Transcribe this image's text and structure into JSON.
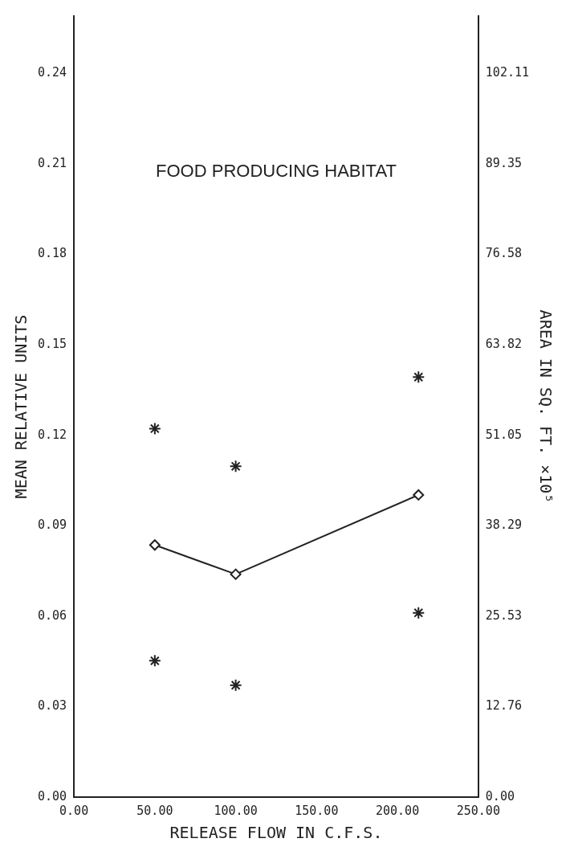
{
  "chart_data": {
    "type": "line",
    "title": "FOOD PRODUCING HABITAT",
    "xlabel": "RELEASE FLOW IN C.F.S.",
    "ylabel": "MEAN RELATIVE UNITS",
    "y2label": "AREA IN SQ. FT. ×10⁵",
    "series": [
      {
        "color": "#222222",
        "marker": "diamond",
        "line_style": "solid",
        "x": [
          50,
          100,
          213
        ],
        "values": [
          0.0836,
          0.0739,
          0.1002
        ]
      },
      {
        "type": "scatter",
        "color": "#222222",
        "marker": "cross",
        "x": [
          50,
          100,
          213,
          50,
          100,
          213
        ],
        "values": [
          0.1222,
          0.1097,
          0.1393,
          0.0452,
          0.0371,
          0.0611
        ]
      }
    ],
    "xlim": [
      0,
      250
    ],
    "xticks": [
      {
        "value": 0,
        "label": "0.00"
      },
      {
        "value": 50,
        "label": "50.00"
      },
      {
        "value": 100,
        "label": "100.00"
      },
      {
        "value": 150,
        "label": "150.00"
      },
      {
        "value": 200,
        "label": "200.00"
      },
      {
        "value": 250,
        "label": "250.00"
      }
    ],
    "ylim": [
      0,
      0.259
    ],
    "yticks": [
      {
        "value": 0,
        "label": "0.00"
      },
      {
        "value": 0.03,
        "label": "0.03"
      },
      {
        "value": 0.06,
        "label": "0.06"
      },
      {
        "value": 0.09,
        "label": "0.09"
      },
      {
        "value": 0.12,
        "label": "0.12"
      },
      {
        "value": 0.15,
        "label": "0.15"
      },
      {
        "value": 0.18,
        "label": "0.18"
      },
      {
        "value": 0.21,
        "label": "0.21"
      },
      {
        "value": 0.24,
        "label": "0.24"
      }
    ],
    "y2lim": [
      0,
      110.2
    ],
    "y2ticks": [
      {
        "value": 0,
        "label": "0.00"
      },
      12.76,
      25.53,
      38.29,
      51.05,
      63.82,
      76.58,
      89.35,
      102.11
    ],
    "grid": false,
    "legend": false
  }
}
